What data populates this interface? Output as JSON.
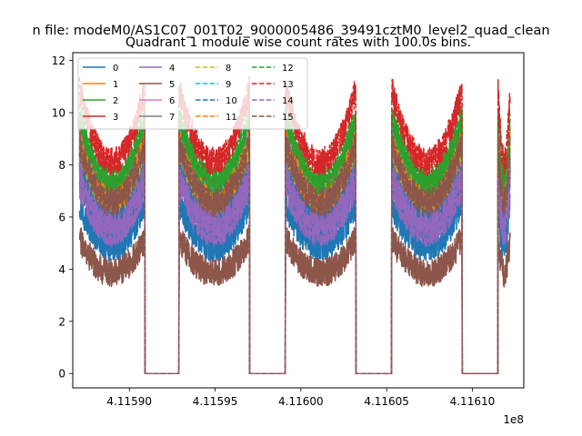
{
  "figure": {
    "suptitle": "n file: modeM0/AS1C07_001T02_9000005486_39491cztM0_level2_quad_clean"
  },
  "chart_data": {
    "type": "line",
    "title": "Quadrant 1 module wise count rates with 100.0s bins.",
    "xlabel": "",
    "ylabel": "",
    "x_offset_label": "1e8",
    "xlim": [
      4.115867,
      4.11613
    ],
    "ylim": [
      -0.55,
      12.3
    ],
    "xticks": [
      4.1159,
      4.11595,
      4.116,
      4.11605,
      4.1161
    ],
    "xtick_labels": [
      "4.11590",
      "4.11595",
      "4.11600",
      "4.11605",
      "4.11610"
    ],
    "yticks": [
      0,
      2,
      4,
      6,
      8,
      10,
      12
    ],
    "ytick_labels": [
      "0",
      "2",
      "4",
      "6",
      "8",
      "10",
      "12"
    ],
    "grid": false,
    "legend": {
      "placement": "top-left",
      "columns": 4
    },
    "segments": [
      [
        4.115871,
        4.115909
      ],
      [
        4.115929,
        4.11597
      ],
      [
        4.115991,
        4.116032
      ],
      [
        4.116053,
        4.116094
      ],
      [
        4.116115,
        4.116122
      ]
    ],
    "series": [
      {
        "name": "0",
        "color": "#1f77b4",
        "dash": false,
        "level": 5.9
      },
      {
        "name": "1",
        "color": "#ff7f0e",
        "dash": false,
        "level": 7.6
      },
      {
        "name": "2",
        "color": "#2ca02c",
        "dash": false,
        "level": 8.6
      },
      {
        "name": "3",
        "color": "#d62728",
        "dash": false,
        "level": 8.4
      },
      {
        "name": "4",
        "color": "#9467bd",
        "dash": false,
        "level": 6.6
      },
      {
        "name": "5",
        "color": "#8c564b",
        "dash": false,
        "level": 4.7
      },
      {
        "name": "6",
        "color": "#e377c2",
        "dash": false,
        "level": 7.2
      },
      {
        "name": "7",
        "color": "#7f7f7f",
        "dash": false,
        "level": 7.7
      },
      {
        "name": "8",
        "color": "#bcbd22",
        "dash": true,
        "level": 8.0
      },
      {
        "name": "9",
        "color": "#17becf",
        "dash": true,
        "level": 8.3
      },
      {
        "name": "10",
        "color": "#1f77b4",
        "dash": true,
        "level": 7.0
      },
      {
        "name": "11",
        "color": "#ff7f0e",
        "dash": true,
        "level": 8.2
      },
      {
        "name": "12",
        "color": "#2ca02c",
        "dash": true,
        "level": 9.0
      },
      {
        "name": "13",
        "color": "#d62728",
        "dash": true,
        "level": 9.9
      },
      {
        "name": "14",
        "color": "#9467bd",
        "dash": true,
        "level": 6.9
      },
      {
        "name": "15",
        "color": "#8c564b",
        "dash": true,
        "level": 8.0
      }
    ]
  }
}
